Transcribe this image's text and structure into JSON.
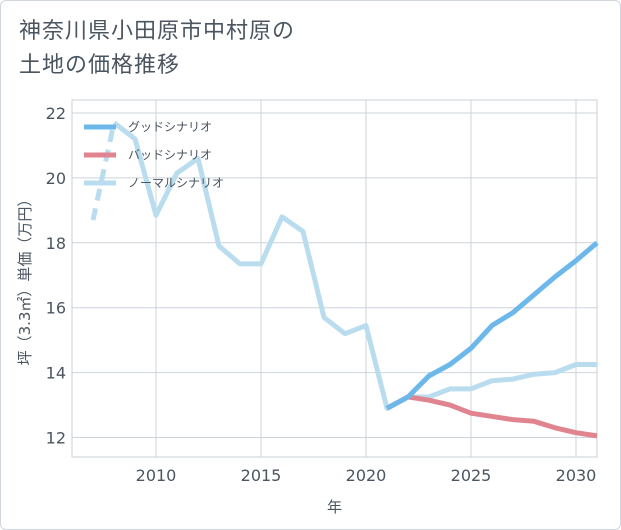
{
  "title_line1": "神奈川県小田原市中村原の",
  "title_line2": "土地の価格推移",
  "chart_data": {
    "type": "line",
    "title": "神奈川県小田原市中村原の土地の価格推移",
    "xlabel": "年",
    "ylabel": "坪（3.3㎡）単価（万円）",
    "xlim": [
      2006,
      2031
    ],
    "ylim": [
      11.4,
      22.4
    ],
    "xticks": [
      2010,
      2015,
      2020,
      2025,
      2030
    ],
    "yticks": [
      12,
      14,
      16,
      18,
      20,
      22
    ],
    "legend_position": "top-left",
    "series": [
      {
        "name": "グッドシナリオ",
        "color": "#6cb8ea",
        "dashed": false,
        "x": [
          2021,
          2022,
          2023,
          2024,
          2025,
          2026,
          2027,
          2028,
          2029,
          2030,
          2031
        ],
        "y": [
          12.9,
          13.25,
          13.9,
          14.25,
          14.75,
          15.45,
          15.85,
          16.4,
          16.95,
          17.45,
          18.0
        ]
      },
      {
        "name": "バッドシナリオ",
        "color": "#e0858f",
        "dashed": false,
        "x": [
          2021,
          2022,
          2023,
          2024,
          2025,
          2026,
          2027,
          2028,
          2029,
          2030,
          2031
        ],
        "y": [
          12.9,
          13.25,
          13.15,
          13.0,
          12.75,
          12.65,
          12.55,
          12.5,
          12.3,
          12.15,
          12.05
        ]
      },
      {
        "name": "ノーマルシナリオ",
        "color": "#b9ddef",
        "dashed": false,
        "x": [
          2008,
          2009,
          2010,
          2011,
          2012,
          2013,
          2014,
          2015,
          2016,
          2017,
          2018,
          2019,
          2020,
          2021,
          2022,
          2023,
          2024,
          2025,
          2026,
          2027,
          2028,
          2029,
          2030,
          2031
        ],
        "y": [
          21.7,
          21.2,
          18.85,
          20.15,
          20.6,
          17.9,
          17.35,
          17.35,
          18.8,
          18.35,
          15.7,
          15.2,
          15.45,
          12.9,
          13.25,
          13.25,
          13.5,
          13.5,
          13.75,
          13.8,
          13.95,
          14.0,
          14.25,
          14.25
        ]
      },
      {
        "name": "",
        "color": "#b9ddef",
        "dashed": true,
        "x": [
          2007,
          2008
        ],
        "y": [
          18.7,
          21.7
        ]
      }
    ]
  }
}
